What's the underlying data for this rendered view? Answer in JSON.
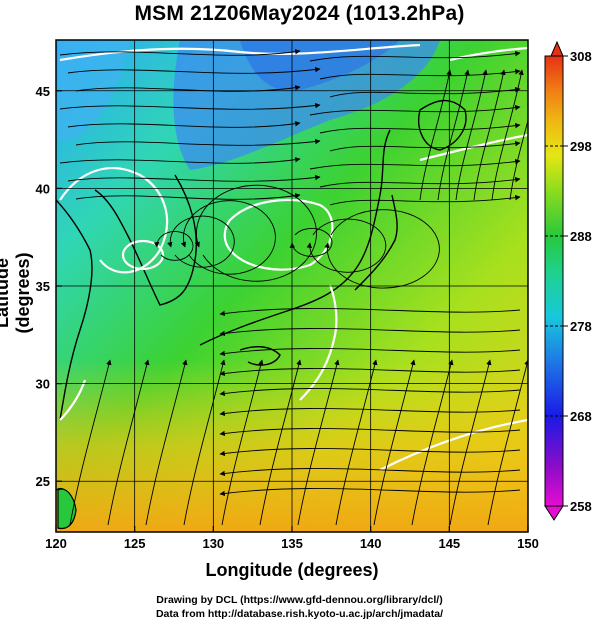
{
  "title": "MSM 21Z06May2024 (1013.2hPa)",
  "xlabel": "Longitude (degrees)",
  "ylabel": "Latitude  (degrees)",
  "credits": {
    "line1": "Drawing by DCL (https://www.gfd-dennou.org/library/dcl/)",
    "line2": "Data from http://database.rish.kyoto-u.ac.jp/arch/jmadata/"
  },
  "map": {
    "xlim": [
      120,
      150
    ],
    "ylim": [
      22.4,
      47.6
    ],
    "x_ticks": [
      "120",
      "125",
      "130",
      "135",
      "140",
      "145",
      "150"
    ],
    "y_ticks": [
      "25",
      "30",
      "35",
      "40",
      "45"
    ],
    "grid": true
  },
  "colorbar": {
    "ticks": [
      "258",
      "268",
      "278",
      "288",
      "298",
      "308"
    ],
    "range": [
      258,
      308
    ],
    "colors": [
      "#e60cd2",
      "#8a0cc8",
      "#1a1ae6",
      "#1e78e6",
      "#18c8dc",
      "#1ed28c",
      "#28c83c",
      "#8cdc1e",
      "#e6e614",
      "#f0b414",
      "#f07814",
      "#e63214"
    ]
  }
}
